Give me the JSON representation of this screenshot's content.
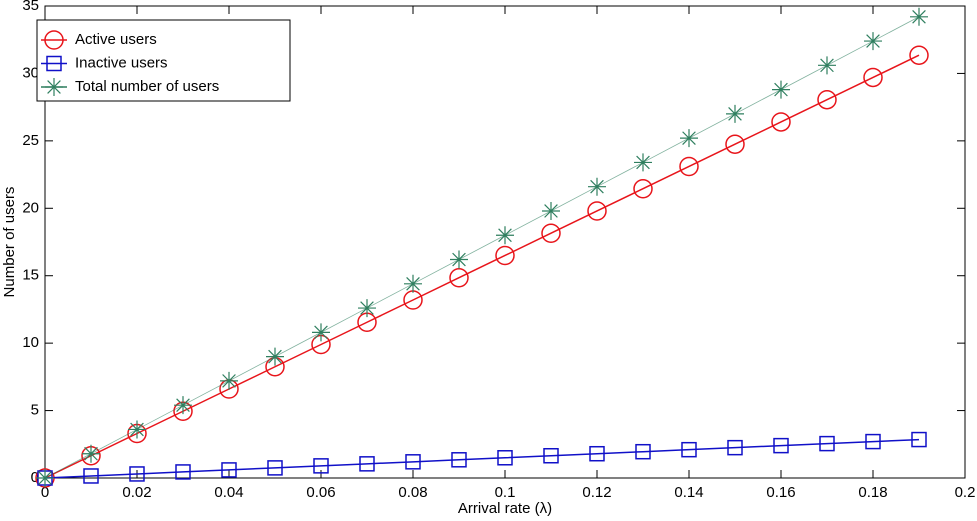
{
  "chart_data": {
    "type": "line",
    "xlabel": "Arrival rate (λ)",
    "ylabel": "Number of users",
    "x": [
      0,
      0.01,
      0.02,
      0.03,
      0.04,
      0.05,
      0.06,
      0.07,
      0.08,
      0.09,
      0.1,
      0.11,
      0.12,
      0.13,
      0.14,
      0.15,
      0.16,
      0.17,
      0.18,
      0.19
    ],
    "xlim": [
      0,
      0.2
    ],
    "xticks": [
      0,
      0.02,
      0.04,
      0.06,
      0.08,
      0.1,
      0.12,
      0.14,
      0.16,
      0.18,
      0.2
    ],
    "ylim": [
      0,
      35
    ],
    "yticks": [
      0,
      5,
      10,
      15,
      20,
      25,
      30,
      35
    ],
    "legend": "upper left",
    "series": [
      {
        "name": "Active users",
        "color": "#e8151b",
        "marker": "circle",
        "values": [
          0,
          1.65,
          3.3,
          4.95,
          6.6,
          8.25,
          9.9,
          11.55,
          13.2,
          14.85,
          16.5,
          18.15,
          19.8,
          21.45,
          23.1,
          24.75,
          26.4,
          28.05,
          29.7,
          31.35
        ]
      },
      {
        "name": "Inactive users",
        "color": "#1010c8",
        "marker": "square",
        "values": [
          0,
          0.15,
          0.3,
          0.45,
          0.6,
          0.75,
          0.9,
          1.05,
          1.2,
          1.35,
          1.5,
          1.65,
          1.8,
          1.95,
          2.1,
          2.25,
          2.4,
          2.55,
          2.7,
          2.85
        ]
      },
      {
        "name": "Total number of users",
        "color": "#2f7f5f",
        "marker": "asterisk",
        "values": [
          0,
          1.8,
          3.6,
          5.4,
          7.2,
          9,
          10.8,
          12.6,
          14.4,
          16.2,
          18,
          19.8,
          21.6,
          23.4,
          25.2,
          27,
          28.8,
          30.6,
          32.4,
          34.2
        ]
      }
    ]
  }
}
